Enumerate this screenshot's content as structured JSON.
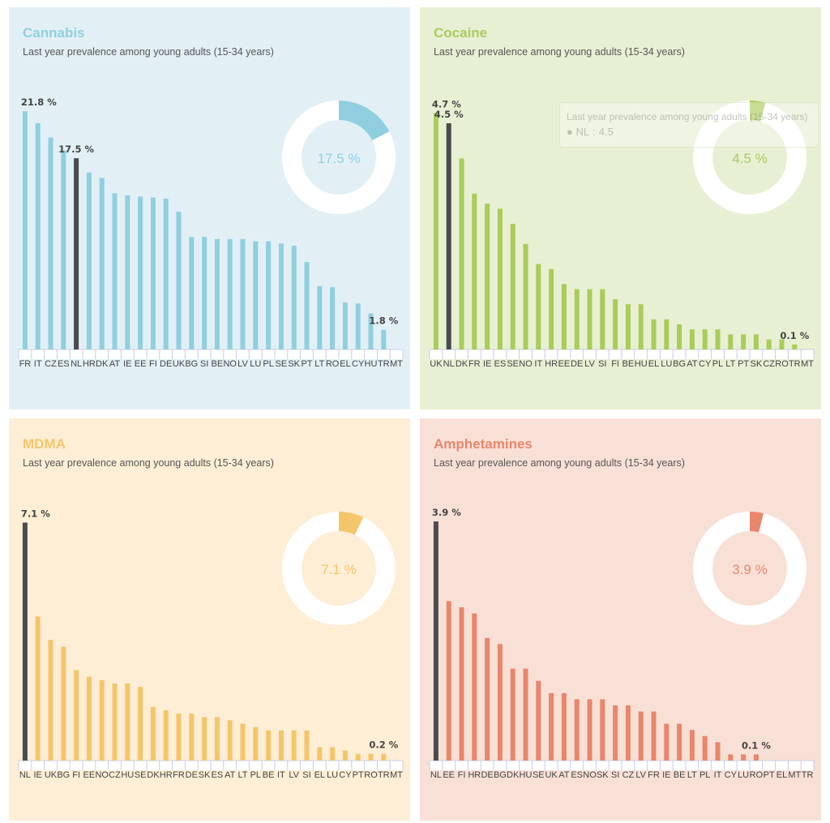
{
  "subtitle": "Last year prevalence among young adults (15-34 years)",
  "charts": [
    {
      "title": "Cannabis",
      "type": "bar",
      "accent": "#8fcfe0",
      "bg": "#e2f0f6",
      "categories": [
        "FR",
        "IT",
        "CZ",
        "ES",
        "NL",
        "HR",
        "DK",
        "AT",
        "IE",
        "EE",
        "FI",
        "DE",
        "UK",
        "BG",
        "SI",
        "BE",
        "NO",
        "LV",
        "LU",
        "PL",
        "SE",
        "SK",
        "PT",
        "LT",
        "RO",
        "EL",
        "CY",
        "HU",
        "TR",
        "MT"
      ],
      "values": [
        21.8,
        20.7,
        19.4,
        18.2,
        17.5,
        16.2,
        15.7,
        14.3,
        14.1,
        14.0,
        13.9,
        13.8,
        12.6,
        10.3,
        10.3,
        10.1,
        10.1,
        10.1,
        9.9,
        9.9,
        9.7,
        9.5,
        8.0,
        5.8,
        5.7,
        4.3,
        4.2,
        3.3,
        1.8,
        null
      ],
      "highlight": "NL",
      "ymax": 23,
      "data_labels": [
        {
          "category": "FR",
          "text": "21.8 %"
        },
        {
          "category": "NL",
          "text": "17.5 %"
        },
        {
          "category": "TR",
          "text": "1.8 %"
        }
      ],
      "donut_label": "17.5 %",
      "donut_fraction": 0.175
    },
    {
      "title": "Cocaine",
      "type": "bar",
      "accent": "#a9cc5a",
      "bg": "#e8f0d4",
      "categories": [
        "UK",
        "NL",
        "DK",
        "FR",
        "IE",
        "ES",
        "SE",
        "NO",
        "IT",
        "HR",
        "EE",
        "DE",
        "LV",
        "SI",
        "FI",
        "BE",
        "HU",
        "EL",
        "LU",
        "BG",
        "AT",
        "CY",
        "PL",
        "LT",
        "PT",
        "SK",
        "CZ",
        "RO",
        "TR",
        "MT"
      ],
      "values": [
        4.7,
        4.5,
        3.8,
        3.1,
        2.9,
        2.8,
        2.5,
        2.1,
        1.7,
        1.6,
        1.3,
        1.2,
        1.2,
        1.2,
        1.0,
        0.9,
        0.9,
        0.6,
        0.6,
        0.5,
        0.4,
        0.4,
        0.4,
        0.3,
        0.3,
        0.3,
        0.2,
        0.2,
        0.1,
        null
      ],
      "highlight": "NL",
      "ymax": 5,
      "data_labels": [
        {
          "category": "UK",
          "text": "4.7 %"
        },
        {
          "category": "NL",
          "text": "4.5 %"
        },
        {
          "category": "TR",
          "text": "0.1 %"
        }
      ],
      "donut_label": "4.5 %",
      "donut_fraction": 0.045,
      "tooltip": {
        "title": "Last year prevalence among young adults (15-34 years)",
        "category": "NL",
        "value": "4.5"
      }
    },
    {
      "title": "MDMA",
      "type": "bar",
      "accent": "#f5c56b",
      "bg": "#fdeed5",
      "categories": [
        "NL",
        "IE",
        "UK",
        "BG",
        "FI",
        "EE",
        "NO",
        "CZ",
        "HU",
        "SE",
        "DK",
        "HR",
        "FR",
        "DE",
        "SK",
        "ES",
        "AT",
        "LT",
        "PL",
        "BE",
        "IT",
        "LV",
        "SI",
        "EL",
        "LU",
        "CY",
        "PT",
        "RO",
        "TR",
        "MT"
      ],
      "values": [
        7.1,
        4.3,
        3.6,
        3.4,
        2.7,
        2.5,
        2.4,
        2.3,
        2.3,
        2.2,
        1.6,
        1.5,
        1.4,
        1.4,
        1.3,
        1.3,
        1.2,
        1.1,
        1.0,
        0.9,
        0.9,
        0.9,
        0.9,
        0.4,
        0.4,
        0.3,
        0.2,
        0.2,
        0.2,
        null
      ],
      "highlight": "NL",
      "ymax": 7.5,
      "data_labels": [
        {
          "category": "NL",
          "text": "7.1 %"
        },
        {
          "category": "TR",
          "text": "0.2 %"
        }
      ],
      "donut_label": "7.1 %",
      "donut_fraction": 0.071
    },
    {
      "title": "Amphetamines",
      "type": "bar",
      "accent": "#e9866c",
      "bg": "#f8e0d6",
      "categories": [
        "NL",
        "EE",
        "FI",
        "HR",
        "DE",
        "BG",
        "DK",
        "HU",
        "SE",
        "UK",
        "AT",
        "ES",
        "NO",
        "SK",
        "SI",
        "CZ",
        "LV",
        "FR",
        "IE",
        "BE",
        "LT",
        "PL",
        "IT",
        "CY",
        "LU",
        "RO",
        "PT",
        "EL",
        "MT",
        "TR"
      ],
      "values": [
        3.9,
        2.6,
        2.5,
        2.4,
        2.0,
        1.9,
        1.5,
        1.5,
        1.3,
        1.1,
        1.1,
        1.0,
        1.0,
        1.0,
        0.9,
        0.9,
        0.8,
        0.8,
        0.6,
        0.6,
        0.5,
        0.4,
        0.3,
        0.1,
        0.1,
        0.1,
        null,
        null,
        null,
        null
      ],
      "highlight": "NL",
      "ymax": 4.1,
      "data_labels": [
        {
          "category": "NL",
          "text": "3.9 %"
        },
        {
          "category": "RO",
          "text": "0.1 %"
        }
      ],
      "donut_label": "3.9 %",
      "donut_fraction": 0.039
    }
  ]
}
